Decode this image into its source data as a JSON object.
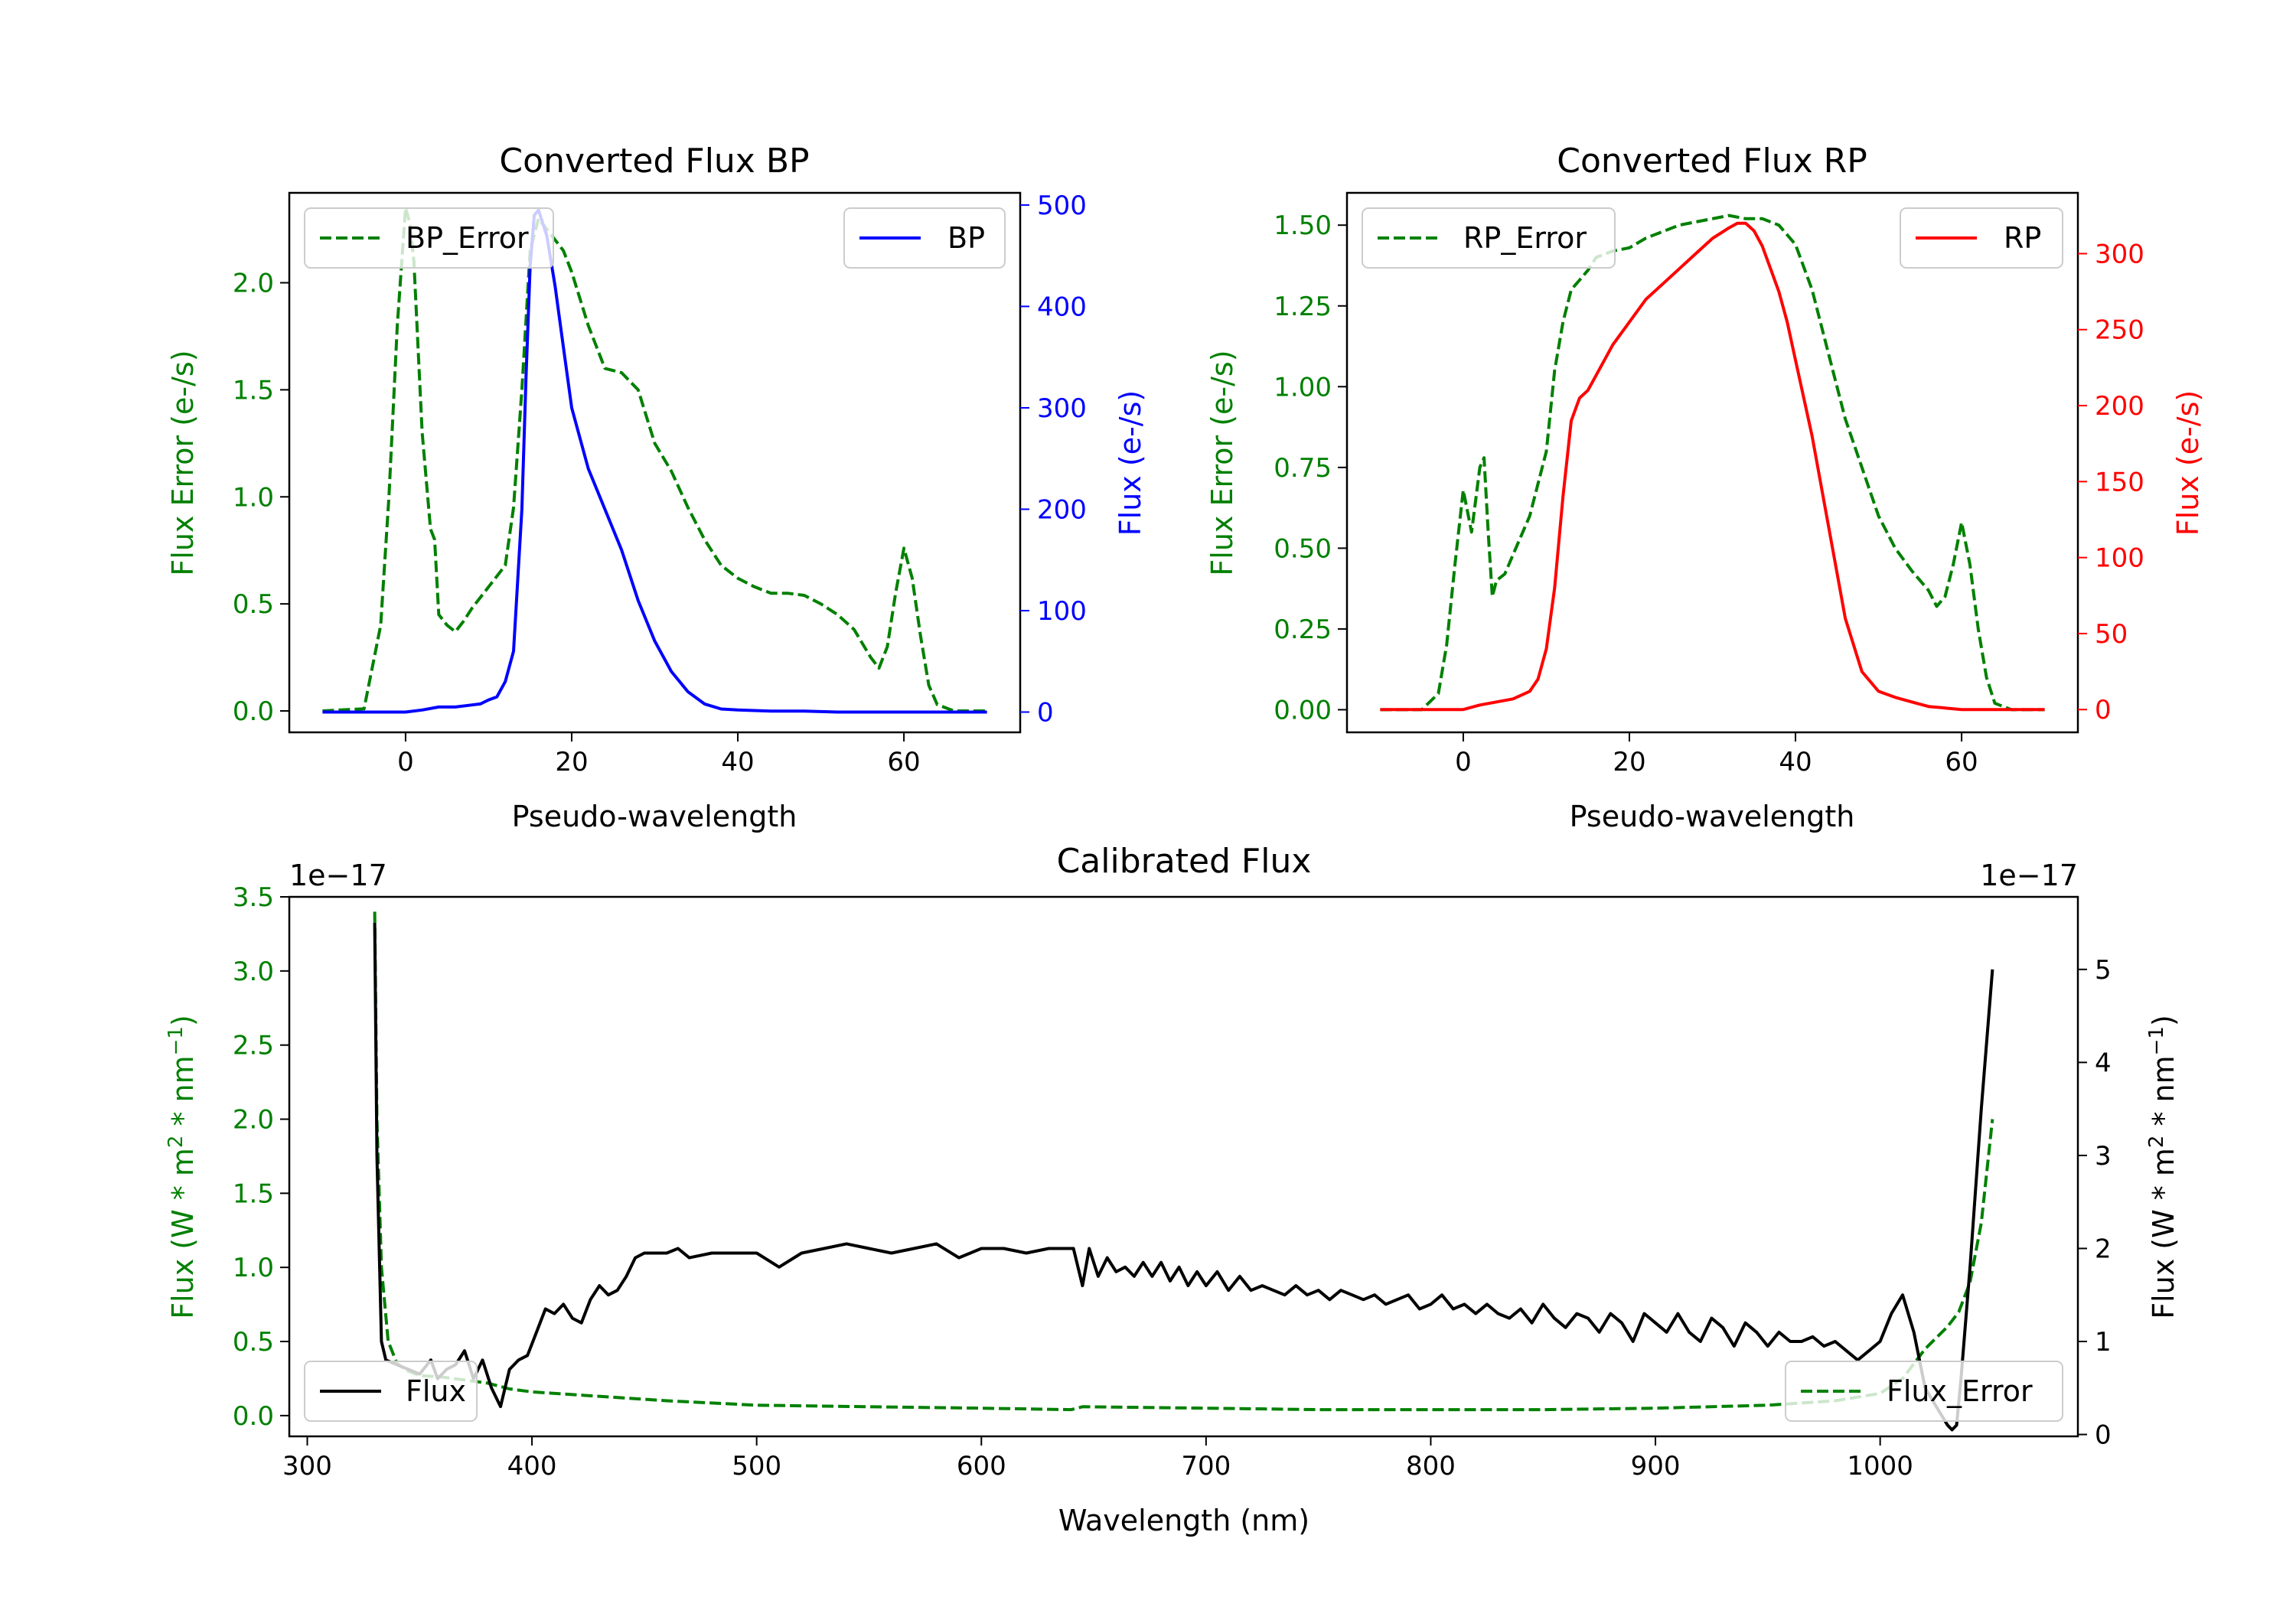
{
  "chart_data": [
    {
      "id": "bp",
      "type": "line",
      "title": "Converted Flux BP",
      "xlabel": "Pseudo-wavelength",
      "xlim": [
        -14,
        74
      ],
      "xticks": [
        "0",
        "20",
        "40",
        "60"
      ],
      "y_left": {
        "label": "Flux Error (e-/s)",
        "color": "#008000",
        "lim": [
          -0.1,
          2.42
        ],
        "ticks": [
          "0.0",
          "0.5",
          "1.0",
          "1.5",
          "2.0"
        ]
      },
      "y_right": {
        "label": "Flux (e-/s)",
        "color": "#0000ff",
        "lim": [
          -20,
          512
        ],
        "ticks": [
          "0",
          "100",
          "200",
          "300",
          "400",
          "500"
        ]
      },
      "legend_left": {
        "label": "BP_Error",
        "position": "upper-left"
      },
      "legend_right": {
        "label": "BP",
        "position": "upper-right"
      },
      "series": [
        {
          "name": "BP_Error",
          "axis": "left",
          "style": "dashed",
          "color": "#008000",
          "x": [
            -10,
            -5,
            -3,
            -2,
            -1,
            0,
            0.5,
            1,
            2,
            3,
            3.5,
            4,
            5,
            6,
            7,
            8,
            10,
            12,
            13,
            14,
            15,
            16,
            17,
            18,
            19,
            20,
            22,
            24,
            26,
            28,
            30,
            32,
            34,
            36,
            38,
            40,
            42,
            44,
            46,
            48,
            50,
            52,
            54,
            56,
            57,
            58,
            59,
            60,
            61,
            62,
            63,
            64,
            66,
            70
          ],
          "y": [
            0,
            0.01,
            0.4,
            1.0,
            1.8,
            2.35,
            2.28,
            2.1,
            1.3,
            0.85,
            0.8,
            0.45,
            0.4,
            0.37,
            0.42,
            0.48,
            0.58,
            0.68,
            0.95,
            1.5,
            2.15,
            2.3,
            2.25,
            2.2,
            2.15,
            2.05,
            1.8,
            1.6,
            1.58,
            1.5,
            1.25,
            1.12,
            0.95,
            0.8,
            0.68,
            0.62,
            0.58,
            0.55,
            0.55,
            0.54,
            0.5,
            0.45,
            0.38,
            0.25,
            0.2,
            0.3,
            0.55,
            0.76,
            0.62,
            0.35,
            0.12,
            0.03,
            0,
            0
          ]
        },
        {
          "name": "BP",
          "axis": "right",
          "style": "solid",
          "color": "#0000ff",
          "x": [
            -10,
            -5,
            0,
            2,
            4,
            6,
            8,
            9,
            10,
            11,
            12,
            13,
            14,
            14.5,
            15,
            15.5,
            16,
            17,
            18,
            19,
            20,
            22,
            24,
            26,
            28,
            30,
            32,
            34,
            36,
            38,
            40,
            44,
            48,
            52,
            56,
            60,
            64,
            70
          ],
          "y": [
            0,
            0,
            0,
            2,
            5,
            5,
            7,
            8,
            12,
            15,
            30,
            60,
            200,
            330,
            440,
            490,
            495,
            470,
            420,
            360,
            300,
            240,
            200,
            160,
            110,
            70,
            40,
            20,
            8,
            3,
            2,
            1,
            1,
            0,
            0,
            0,
            0,
            0
          ]
        }
      ]
    },
    {
      "id": "rp",
      "type": "line",
      "title": "Converted Flux RP",
      "xlabel": "Pseudo-wavelength",
      "xlim": [
        -14,
        74
      ],
      "xticks": [
        "0",
        "20",
        "40",
        "60"
      ],
      "y_left": {
        "label": "Flux Error (e-/s)",
        "color": "#008000",
        "lim": [
          -0.07,
          1.6
        ],
        "ticks": [
          "0.00",
          "0.25",
          "0.50",
          "0.75",
          "1.00",
          "1.25",
          "1.50"
        ]
      },
      "y_right": {
        "label": "Flux (e-/s)",
        "color": "#ff0000",
        "lim": [
          -15,
          340
        ],
        "ticks": [
          "0",
          "50",
          "100",
          "150",
          "200",
          "250",
          "300"
        ]
      },
      "legend_left": {
        "label": "RP_Error",
        "position": "upper-left"
      },
      "legend_right": {
        "label": "RP",
        "position": "upper-right"
      },
      "series": [
        {
          "name": "RP_Error",
          "axis": "left",
          "style": "dashed",
          "color": "#008000",
          "x": [
            -10,
            -5,
            -3,
            -2,
            -1,
            0,
            1,
            2,
            2.5,
            3,
            3.5,
            4,
            5,
            6,
            8,
            10,
            11,
            12,
            13,
            14,
            15,
            16,
            18,
            20,
            22,
            24,
            26,
            28,
            30,
            32,
            34,
            36,
            38,
            40,
            42,
            44,
            46,
            48,
            50,
            52,
            54,
            56,
            57,
            58,
            59,
            60,
            61,
            62,
            63,
            64,
            66,
            70
          ],
          "y": [
            0,
            0,
            0.05,
            0.2,
            0.45,
            0.68,
            0.55,
            0.75,
            0.78,
            0.55,
            0.35,
            0.4,
            0.42,
            0.48,
            0.6,
            0.8,
            1.05,
            1.2,
            1.3,
            1.33,
            1.36,
            1.4,
            1.42,
            1.43,
            1.46,
            1.48,
            1.5,
            1.51,
            1.52,
            1.53,
            1.52,
            1.52,
            1.5,
            1.44,
            1.3,
            1.1,
            0.9,
            0.75,
            0.6,
            0.5,
            0.43,
            0.37,
            0.32,
            0.35,
            0.45,
            0.58,
            0.45,
            0.25,
            0.1,
            0.02,
            0,
            0
          ]
        },
        {
          "name": "RP",
          "axis": "right",
          "style": "solid",
          "color": "#ff0000",
          "x": [
            -10,
            -5,
            0,
            2,
            4,
            6,
            8,
            9,
            10,
            11,
            12,
            13,
            14,
            15,
            16,
            18,
            20,
            22,
            24,
            26,
            28,
            30,
            32,
            33,
            34,
            35,
            36,
            37,
            38,
            39,
            40,
            42,
            44,
            46,
            48,
            50,
            52,
            54,
            56,
            58,
            60,
            62,
            66,
            70
          ],
          "y": [
            0,
            0,
            0,
            3,
            5,
            7,
            12,
            20,
            40,
            80,
            140,
            190,
            205,
            210,
            220,
            240,
            255,
            270,
            280,
            290,
            300,
            310,
            317,
            320,
            320,
            315,
            305,
            290,
            275,
            255,
            230,
            180,
            120,
            60,
            25,
            12,
            8,
            5,
            2,
            1,
            0,
            0,
            0,
            0
          ]
        }
      ]
    },
    {
      "id": "calibrated",
      "type": "line",
      "title": "Calibrated Flux",
      "xlabel": "Wavelength (nm)",
      "xlim": [
        292,
        1088
      ],
      "xticks": [
        "300",
        "400",
        "500",
        "600",
        "700",
        "800",
        "900",
        "1000"
      ],
      "y_left": {
        "label": "Flux (W * m^2 * nm^-1)",
        "label_parts": [
          "Flux (W * m",
          "2",
          " * nm",
          "−1",
          ")"
        ],
        "color": "#008000",
        "lim": [
          -0.14,
          3.5
        ],
        "ticks": [
          "0.0",
          "0.5",
          "1.0",
          "1.5",
          "2.0",
          "2.5",
          "3.0",
          "3.5"
        ],
        "offset": "1e−17"
      },
      "y_right": {
        "label": "Flux (W * m^2 * nm^-1)",
        "label_parts": [
          "Flux (W * m",
          "2",
          " * nm",
          "−1",
          ")"
        ],
        "color": "#000000",
        "lim": [
          -0.02,
          5.78
        ],
        "ticks": [
          "0",
          "1",
          "2",
          "3",
          "4",
          "5"
        ],
        "offset": "1e−17"
      },
      "legend_left": {
        "label": "Flux",
        "position": "lower-left"
      },
      "legend_right": {
        "label": "Flux_Error",
        "position": "lower-right"
      },
      "series": [
        {
          "name": "Flux_Error",
          "axis": "left",
          "style": "dashed",
          "color": "#008000",
          "x": [
            330,
            331,
            333,
            336,
            340,
            345,
            350,
            360,
            370,
            380,
            385,
            390,
            400,
            420,
            440,
            460,
            500,
            550,
            600,
            640,
            645,
            700,
            750,
            800,
            850,
            900,
            950,
            980,
            1000,
            1010,
            1020,
            1030,
            1035,
            1040,
            1045,
            1050
          ],
          "y": [
            3.4,
            2.0,
            1.0,
            0.5,
            0.35,
            0.3,
            0.27,
            0.26,
            0.24,
            0.22,
            0.2,
            0.18,
            0.16,
            0.14,
            0.12,
            0.1,
            0.07,
            0.06,
            0.05,
            0.04,
            0.06,
            0.05,
            0.04,
            0.04,
            0.04,
            0.05,
            0.07,
            0.1,
            0.15,
            0.25,
            0.45,
            0.6,
            0.7,
            0.9,
            1.3,
            2.0
          ]
        },
        {
          "name": "Flux",
          "axis": "right",
          "style": "solid",
          "color": "#000000",
          "x": [
            330,
            331,
            333,
            335,
            340,
            345,
            350,
            355,
            358,
            362,
            366,
            370,
            374,
            378,
            382,
            386,
            390,
            394,
            398,
            402,
            406,
            410,
            414,
            418,
            422,
            426,
            430,
            434,
            438,
            442,
            446,
            450,
            455,
            460,
            465,
            470,
            480,
            490,
            500,
            510,
            520,
            530,
            540,
            550,
            560,
            570,
            580,
            590,
            600,
            610,
            620,
            630,
            640,
            641,
            645,
            648,
            652,
            656,
            660,
            664,
            668,
            672,
            676,
            680,
            684,
            688,
            692,
            696,
            700,
            705,
            710,
            715,
            720,
            725,
            730,
            735,
            740,
            745,
            750,
            755,
            760,
            765,
            770,
            775,
            780,
            785,
            790,
            795,
            800,
            805,
            810,
            815,
            820,
            825,
            830,
            835,
            840,
            845,
            850,
            855,
            860,
            865,
            870,
            875,
            880,
            885,
            890,
            895,
            900,
            905,
            910,
            915,
            920,
            925,
            930,
            935,
            940,
            945,
            950,
            955,
            960,
            965,
            970,
            975,
            980,
            985,
            990,
            995,
            1000,
            1005,
            1010,
            1015,
            1020,
            1025,
            1030,
            1032,
            1034,
            1036,
            1040,
            1045,
            1050
          ],
          "y": [
            5.5,
            3.0,
            1.0,
            0.8,
            0.75,
            0.7,
            0.65,
            0.8,
            0.6,
            0.7,
            0.75,
            0.9,
            0.6,
            0.8,
            0.5,
            0.3,
            0.7,
            0.8,
            0.85,
            1.1,
            1.35,
            1.3,
            1.4,
            1.25,
            1.2,
            1.45,
            1.6,
            1.5,
            1.55,
            1.7,
            1.9,
            1.95,
            1.95,
            1.95,
            2.0,
            1.9,
            1.95,
            1.95,
            1.95,
            1.8,
            1.95,
            2.0,
            2.05,
            2.0,
            1.95,
            2.0,
            2.05,
            1.9,
            2.0,
            2.0,
            1.95,
            2.0,
            2.0,
            2.0,
            1.6,
            2.0,
            1.7,
            1.9,
            1.75,
            1.8,
            1.7,
            1.85,
            1.7,
            1.85,
            1.65,
            1.8,
            1.6,
            1.75,
            1.6,
            1.75,
            1.55,
            1.7,
            1.55,
            1.6,
            1.55,
            1.5,
            1.6,
            1.5,
            1.55,
            1.45,
            1.55,
            1.5,
            1.45,
            1.5,
            1.4,
            1.45,
            1.5,
            1.35,
            1.4,
            1.5,
            1.35,
            1.4,
            1.3,
            1.4,
            1.3,
            1.25,
            1.35,
            1.2,
            1.4,
            1.25,
            1.15,
            1.3,
            1.25,
            1.1,
            1.3,
            1.2,
            1.0,
            1.3,
            1.2,
            1.1,
            1.3,
            1.1,
            1.0,
            1.25,
            1.15,
            0.95,
            1.2,
            1.1,
            0.95,
            1.1,
            1.0,
            1.0,
            1.05,
            0.95,
            1.0,
            0.9,
            0.8,
            0.9,
            1.0,
            1.3,
            1.5,
            1.1,
            0.5,
            0.3,
            0.1,
            0.05,
            0.1,
            0.6,
            1.8,
            3.5,
            5.0
          ]
        }
      ]
    }
  ]
}
